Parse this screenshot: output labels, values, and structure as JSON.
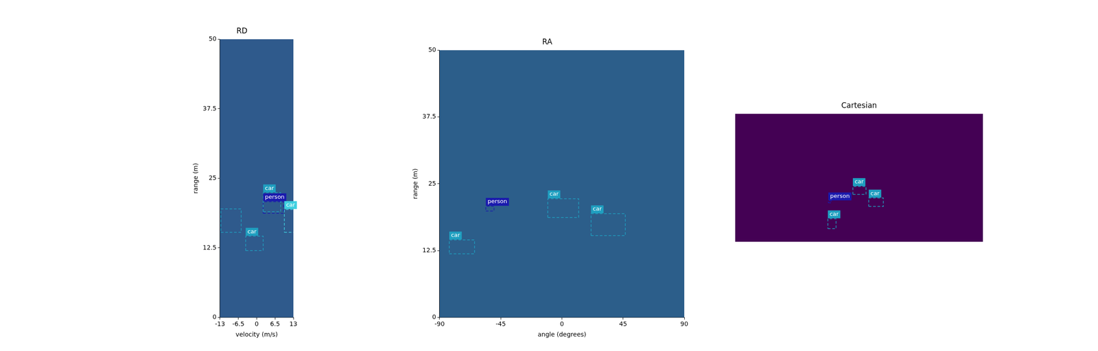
{
  "chart_data": [
    {
      "type": "box",
      "title": "RD",
      "x_label": "velocity (m/s)",
      "y_label": "range (m)",
      "xlim": [
        -13,
        13
      ],
      "ylim": [
        0,
        50
      ],
      "xticks": [
        -13,
        -6.5,
        0,
        6.5,
        13
      ],
      "yticks": [
        0,
        12.5,
        25,
        37.5,
        50
      ],
      "color": "#2f5a8c",
      "grid": false,
      "boxes": [
        {
          "label": "car",
          "color": "#1f9fc0",
          "x": [
            -3.9,
            2.3
          ],
          "y": [
            12.0,
            14.6
          ]
        },
        {
          "label": "car",
          "color": "#1f9fc0",
          "x": [
            2.3,
            8.5
          ],
          "y": [
            19.0,
            22.4
          ]
        },
        {
          "label": "person",
          "color": "#1a1aad",
          "x": [
            2.3,
            9.5
          ],
          "y": [
            18.7,
            20.8
          ]
        },
        {
          "label": "car",
          "color": "#3fd0e0",
          "x": [
            9.8,
            13.5
          ],
          "y": [
            15.3,
            19.4
          ]
        },
        {
          "color": "#1f9fc0",
          "x": [
            -12.7,
            -5.5
          ],
          "y": [
            15.3,
            19.5
          ]
        }
      ]
    },
    {
      "type": "box",
      "title": "RA",
      "x_label": "angle (degrees)",
      "y_label": "range (m)",
      "xlim": [
        -90,
        90
      ],
      "ylim": [
        0,
        50
      ],
      "xticks": [
        -90,
        -45,
        0,
        45,
        90
      ],
      "yticks": [
        0,
        12.5,
        25,
        37.5,
        50
      ],
      "color": "#2c5e8a",
      "grid": false,
      "boxes": [
        {
          "label": "person",
          "color": "#1a1aad",
          "x": [
            -56,
            -50
          ],
          "y": [
            19.9,
            20.8
          ]
        },
        {
          "label": "car",
          "color": "#1f9fc0",
          "x": [
            -10.4,
            12.3
          ],
          "y": [
            18.7,
            22.2
          ]
        },
        {
          "label": "car",
          "color": "#1f9fc0",
          "x": [
            21.4,
            46.6
          ],
          "y": [
            15.3,
            19.4
          ]
        },
        {
          "label": "car",
          "color": "#1f9fc0",
          "x": [
            -82.9,
            -64.3
          ],
          "y": [
            11.9,
            14.5
          ]
        }
      ]
    },
    {
      "type": "box",
      "title": "Cartesian",
      "xlim": [
        -50,
        50
      ],
      "ylim": [
        0,
        50
      ],
      "tick_labels": false,
      "color": "#440154",
      "grid": false,
      "boxes": [
        {
          "label": "car",
          "color": "#1f9fc0",
          "x": [
            -2.5,
            2.8
          ],
          "y": [
            18.5,
            21.6
          ]
        },
        {
          "label": "car",
          "color": "#1f9fc0",
          "x": [
            3.9,
            9.8
          ],
          "y": [
            13.8,
            17.1
          ]
        },
        {
          "label": "person",
          "color": "#1a1aad",
          "x": [
            -12.4,
            -11.2
          ],
          "y": [
            15.2,
            16.0
          ]
        },
        {
          "label": "car",
          "color": "#1f9fc0",
          "x": [
            -12.6,
            -9.3
          ],
          "y": [
            5.1,
            9.0
          ]
        }
      ]
    }
  ]
}
